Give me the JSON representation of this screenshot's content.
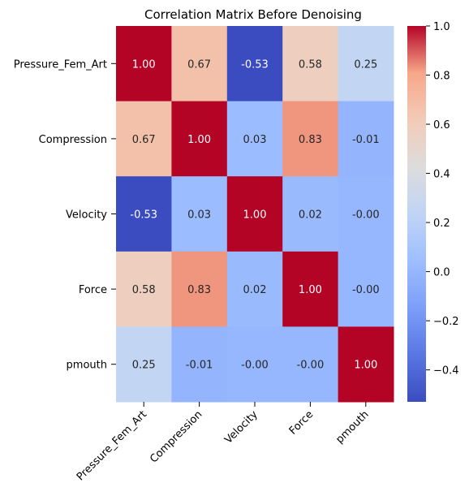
{
  "chart_data": {
    "type": "heatmap",
    "title": "Correlation Matrix Before Denoising",
    "xlabel": "",
    "ylabel": "",
    "row_labels": [
      "Pressure_Fem_Art",
      "Compression",
      "Velocity",
      "Force",
      "pmouth"
    ],
    "col_labels": [
      "Pressure_Fem_Art",
      "Compression",
      "Velocity",
      "Force",
      "pmouth"
    ],
    "values": [
      [
        1.0,
        0.67,
        -0.53,
        0.58,
        0.25
      ],
      [
        0.67,
        1.0,
        0.03,
        0.83,
        -0.01
      ],
      [
        -0.53,
        0.03,
        1.0,
        0.02,
        -0.0
      ],
      [
        0.58,
        0.83,
        0.02,
        1.0,
        -0.0
      ],
      [
        0.25,
        -0.01,
        -0.0,
        -0.0,
        1.0
      ]
    ],
    "value_labels": [
      [
        "1.00",
        "0.67",
        "-0.53",
        "0.58",
        "0.25"
      ],
      [
        "0.67",
        "1.00",
        "0.03",
        "0.83",
        "-0.01"
      ],
      [
        "-0.53",
        "0.03",
        "1.00",
        "0.02",
        "-0.00"
      ],
      [
        "0.58",
        "0.83",
        "0.02",
        "1.00",
        "-0.00"
      ],
      [
        "0.25",
        "-0.01",
        "-0.00",
        "-0.00",
        "1.00"
      ]
    ],
    "colormap": "coolwarm",
    "colorbar": {
      "range": [
        -0.53,
        1.0
      ],
      "ticks": [
        -0.4,
        -0.2,
        0.0,
        0.2,
        0.4,
        0.6,
        0.8,
        1.0
      ],
      "tick_labels": [
        "−0.4",
        "−0.2",
        "0.0",
        "0.2",
        "0.4",
        "0.6",
        "0.8",
        "1.0"
      ]
    },
    "grid": false
  }
}
